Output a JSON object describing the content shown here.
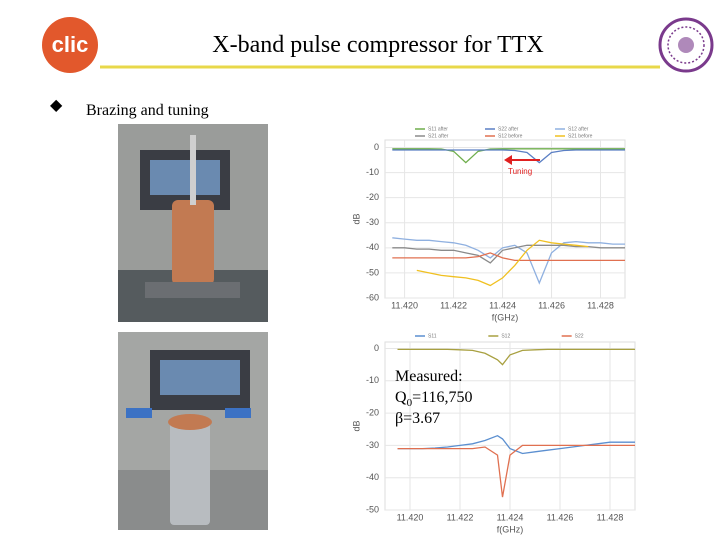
{
  "slide": {
    "title": "X-band pulse compressor for TTX",
    "logo_text": "clic",
    "bullet": "Brazing and tuning",
    "measured": {
      "heading": "Measured:",
      "q_label": "Q",
      "q_sub": "0",
      "q_value": "=116,750",
      "beta": "β=3.67"
    }
  },
  "chart_data": [
    {
      "type": "line",
      "annotation": "Tuning",
      "xlabel": "f(GHz)",
      "ylabel": "dB",
      "x": [
        11.4195,
        11.42,
        11.4205,
        11.421,
        11.4215,
        11.422,
        11.4225,
        11.423,
        11.4235,
        11.424,
        11.4245,
        11.425,
        11.4255,
        11.426,
        11.4265,
        11.427,
        11.4275,
        11.428,
        11.4285,
        11.429
      ],
      "xlim": [
        11.4192,
        11.429
      ],
      "ylim": [
        -60,
        3
      ],
      "xticks": [
        {
          "value": 11.42,
          "label": "11.420"
        },
        {
          "value": 11.422,
          "label": "11.422"
        },
        {
          "value": 11.424,
          "label": "11.424"
        },
        {
          "value": 11.426,
          "label": "11.426"
        },
        {
          "value": 11.428,
          "label": "11.428"
        }
      ],
      "yticks": [
        0,
        -10,
        -20,
        -30,
        -40,
        -50,
        -60
      ],
      "grid": true,
      "series": [
        {
          "name": "S11 after",
          "color": "#6fae4c",
          "values": [
            -0.5,
            -0.5,
            -0.5,
            -0.5,
            -0.6,
            -1.5,
            -6,
            -1.5,
            -0.6,
            -0.5,
            -0.5,
            -0.5,
            -0.5,
            -0.5,
            -0.5,
            -0.5,
            -0.5,
            -0.5,
            -0.5,
            -0.5
          ]
        },
        {
          "name": "S22 after",
          "color": "#5b7fc4",
          "values": [
            -1,
            -1,
            -1,
            -1,
            -1,
            -1,
            -1,
            -1,
            -1,
            -1,
            -1.2,
            -2,
            -6,
            -2,
            -1.2,
            -1,
            -1,
            -1,
            -1,
            -1
          ]
        },
        {
          "name": "S12 after",
          "color": "#8fb0e0",
          "values": [
            -36,
            -36.5,
            -37,
            -37,
            -37.5,
            -38,
            -39,
            -41,
            -44,
            -40,
            -39,
            -42,
            -54,
            -42,
            -38,
            -37.5,
            -38,
            -38,
            -38.5,
            -38.5
          ]
        },
        {
          "name": "S21 after",
          "color": "#8a8a8a",
          "values": [
            -40,
            -40,
            -40.5,
            -40.5,
            -41,
            -41,
            -42,
            -43,
            -46,
            -41,
            -40,
            -39,
            -39,
            -39,
            -39,
            -39.5,
            -39.5,
            -40,
            -40,
            -40
          ]
        },
        {
          "name": "S12 before",
          "color": "#e07050",
          "values": [
            -44,
            -44,
            -44,
            -44,
            -44,
            -44,
            -44,
            -43.5,
            -42,
            -44,
            -45,
            -45,
            -45,
            -45,
            -45,
            -45,
            -45,
            -45,
            -45,
            -45
          ]
        },
        {
          "name": "S21 before",
          "color": "#f0c020",
          "values": [
            null,
            null,
            -49,
            -50,
            -51,
            -51.5,
            -52,
            -53,
            -55,
            -52,
            -47,
            -41,
            -37,
            -38,
            -38.5,
            -39,
            -39.5,
            null,
            null,
            null
          ]
        }
      ]
    },
    {
      "type": "line",
      "xlabel": "f(GHz)",
      "ylabel": "dB",
      "x": [
        11.4195,
        11.42,
        11.4205,
        11.421,
        11.4215,
        11.422,
        11.4225,
        11.423,
        11.4235,
        11.4237,
        11.424,
        11.4245,
        11.425,
        11.4255,
        11.426,
        11.4265,
        11.427,
        11.4275,
        11.428,
        11.4285,
        11.429
      ],
      "xlim": [
        11.419,
        11.429
      ],
      "ylim": [
        -50,
        2
      ],
      "xticks": [
        {
          "value": 11.42,
          "label": "11.420"
        },
        {
          "value": 11.422,
          "label": "11.422"
        },
        {
          "value": 11.424,
          "label": "11.424"
        },
        {
          "value": 11.426,
          "label": "11.426"
        },
        {
          "value": 11.428,
          "label": "11.428"
        }
      ],
      "yticks": [
        0,
        -10,
        -20,
        -30,
        -40,
        -50
      ],
      "grid": true,
      "series": [
        {
          "name": "S11",
          "color": "#5b8fd0",
          "values": [
            -31,
            -31,
            -31,
            -30.8,
            -30.5,
            -30,
            -29.5,
            -28.5,
            -27,
            -28,
            -31,
            -32.5,
            -32,
            -31.5,
            -31,
            -30.5,
            -30,
            -29.5,
            -29,
            -29,
            -29
          ]
        },
        {
          "name": "S12",
          "color": "#a8a040",
          "values": [
            -0.3,
            -0.3,
            -0.3,
            -0.3,
            -0.3,
            -0.4,
            -0.6,
            -1.5,
            -3.5,
            -5,
            -2,
            -0.6,
            -0.4,
            -0.3,
            -0.3,
            -0.3,
            -0.3,
            -0.3,
            -0.3,
            -0.3,
            -0.3
          ]
        },
        {
          "name": "S22",
          "color": "#e07050",
          "values": [
            -31,
            -31,
            -31,
            -31,
            -31,
            -31,
            -31,
            -30.5,
            -33,
            -46,
            -33,
            -30,
            -30,
            -30,
            -30,
            -30,
            -30,
            -30,
            -30,
            -30,
            -30
          ]
        }
      ]
    }
  ]
}
